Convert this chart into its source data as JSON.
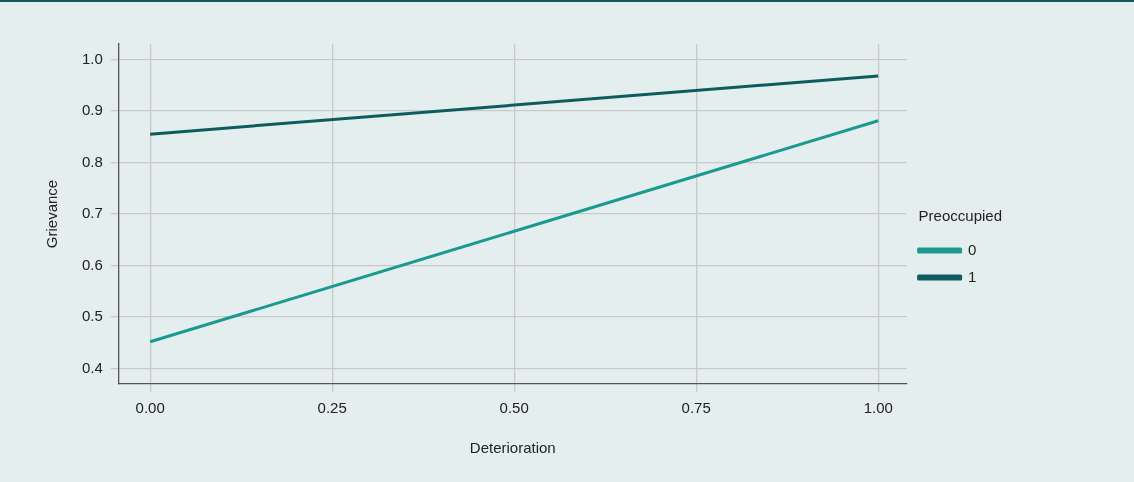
{
  "chart_data": {
    "type": "line",
    "xlabel": "Deterioration",
    "ylabel": "Grievance",
    "legend_title": "Preoccupied",
    "x": [
      0,
      1
    ],
    "series": [
      {
        "name": "0",
        "color": "#1a9a8f",
        "values": [
          0.452,
          0.881
        ]
      },
      {
        "name": "1",
        "color": "#0d5c5e",
        "values": [
          0.855,
          0.968
        ]
      }
    ],
    "xlim": [
      -0.043,
      1.039
    ],
    "xticks": [
      {
        "value": 0,
        "label": "0.00"
      },
      {
        "value": 0.25,
        "label": "0.25"
      },
      {
        "value": 0.5,
        "label": "0.50"
      },
      {
        "value": 0.75,
        "label": "0.75"
      },
      {
        "value": 1,
        "label": "1.00"
      }
    ],
    "ylim": [
      0.37,
      1.03
    ],
    "yticks": [
      {
        "value": 0.4,
        "label": "0.4"
      },
      {
        "value": 0.5,
        "label": "0.5"
      },
      {
        "value": 0.6,
        "label": "0.6"
      },
      {
        "value": 0.7,
        "label": "0.7"
      },
      {
        "value": 0.8,
        "label": "0.8"
      },
      {
        "value": 0.9,
        "label": "0.9"
      },
      {
        "value": 1,
        "label": "1.0"
      }
    ],
    "grid": true,
    "legend": "right",
    "marker": "none",
    "line_style": "solid"
  }
}
